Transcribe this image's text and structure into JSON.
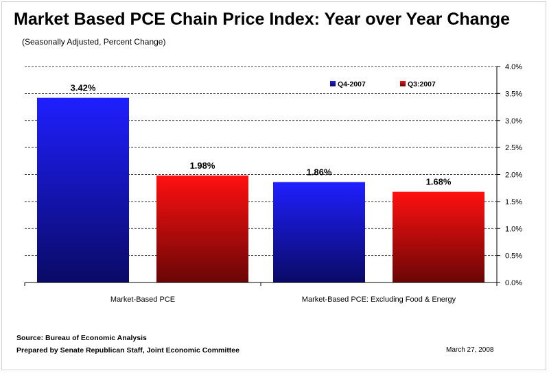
{
  "chart_data": {
    "type": "bar",
    "title": "Market Based PCE Chain Price Index:  Year over Year Change",
    "subtitle": "(Seasonally Adjusted, Percent Change)",
    "categories": [
      "Market-Based PCE",
      "Market-Based PCE: Excluding Food & Energy"
    ],
    "series": [
      {
        "name": "Q4-2007",
        "values": [
          3.42,
          1.86
        ],
        "labels": [
          "3.42%",
          "1.86%"
        ],
        "color_top": "#1f1fff",
        "color_bottom": "#0a0a66"
      },
      {
        "name": "Q3:2007",
        "values": [
          1.98,
          1.68
        ],
        "labels": [
          "1.98%",
          "1.68%"
        ],
        "color_top": "#ff1010",
        "color_bottom": "#6a0606"
      }
    ],
    "ylim": [
      0,
      4.0
    ],
    "yticks": [
      0.0,
      0.5,
      1.0,
      1.5,
      2.0,
      2.5,
      3.0,
      3.5,
      4.0
    ],
    "ytick_labels": [
      "0.0%",
      "0.5%",
      "1.0%",
      "1.5%",
      "2.0%",
      "2.5%",
      "3.0%",
      "3.5%",
      "4.0%"
    ],
    "y_axis_side": "right",
    "grid": "dashed",
    "legend_position": "top-right",
    "xlabel": "",
    "ylabel": ""
  },
  "footer": {
    "source": "Source: Bureau of Economic Analysis",
    "prepared": "Prepared by Senate Republican Staff, Joint Economic Committee",
    "date": "March 27, 2008"
  }
}
